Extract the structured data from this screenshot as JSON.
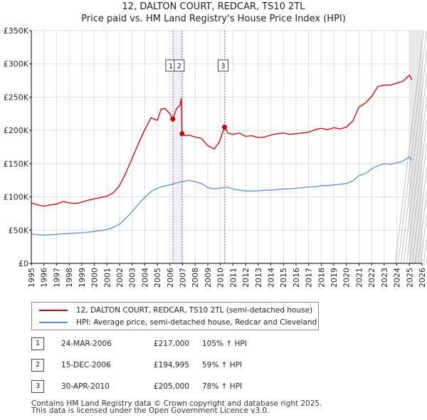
{
  "title_line1": "12, DALTON COURT, REDCAR, TS10 2TL",
  "title_line2": "Price paid vs. HM Land Registry's House Price Index (HPI)",
  "chart_data": {
    "type": "line",
    "title": "12, DALTON COURT, REDCAR, TS10 2TL — Price paid vs. HM Land Registry's House Price Index (HPI)",
    "xlabel": "",
    "ylabel": "",
    "xlim": [
      1995,
      2026
    ],
    "ylim": [
      0,
      350000
    ],
    "x_ticks": [
      1995,
      1996,
      1997,
      1998,
      1999,
      2000,
      2001,
      2002,
      2003,
      2004,
      2005,
      2006,
      2007,
      2008,
      2009,
      2010,
      2011,
      2012,
      2013,
      2014,
      2015,
      2016,
      2017,
      2018,
      2019,
      2020,
      2021,
      2022,
      2023,
      2024,
      2025,
      2026
    ],
    "y_ticks": [
      {
        "value": 0,
        "label": "£0"
      },
      {
        "value": 50000,
        "label": "£50K"
      },
      {
        "value": 100000,
        "label": "£100K"
      },
      {
        "value": 150000,
        "label": "£150K"
      },
      {
        "value": 200000,
        "label": "£200K"
      },
      {
        "value": 250000,
        "label": "£250K"
      },
      {
        "value": 300000,
        "label": "£300K"
      },
      {
        "value": 350000,
        "label": "£350K"
      }
    ],
    "grid": true,
    "forecast_start": 2025.0,
    "series": [
      {
        "name": "12, DALTON COURT, REDCAR, TS10 2TL (semi-detached house)",
        "color": "#cc0000",
        "x": [
          1995.0,
          1995.5,
          1996.0,
          1996.5,
          1997.0,
          1997.5,
          1998.0,
          1998.5,
          1999.0,
          1999.5,
          2000.0,
          2000.5,
          2001.0,
          2001.5,
          2002.0,
          2002.5,
          2003.0,
          2003.5,
          2004.0,
          2004.5,
          2005.0,
          2005.3,
          2005.6,
          2006.0,
          2006.23,
          2006.5,
          2006.8,
          2006.9,
          2006.96,
          2007.2,
          2007.5,
          2008.0,
          2008.5,
          2009.0,
          2009.5,
          2009.9,
          2010.33,
          2010.6,
          2011.0,
          2011.5,
          2012.0,
          2012.5,
          2013.0,
          2013.5,
          2014.0,
          2014.5,
          2015.0,
          2015.5,
          2016.0,
          2016.5,
          2017.0,
          2017.5,
          2018.0,
          2018.5,
          2019.0,
          2019.5,
          2020.0,
          2020.5,
          2021.0,
          2021.5,
          2022.0,
          2022.5,
          2023.0,
          2023.5,
          2024.0,
          2024.5,
          2025.0,
          2025.2
        ],
        "y": [
          91000,
          88000,
          86000,
          88000,
          89000,
          93000,
          91000,
          90000,
          92000,
          95000,
          97000,
          99000,
          101000,
          106000,
          117000,
          136000,
          158000,
          180000,
          201000,
          219000,
          215000,
          232000,
          233000,
          225000,
          217000,
          232000,
          238000,
          248000,
          194995,
          192000,
          193000,
          190000,
          188000,
          177000,
          172000,
          182000,
          205000,
          196000,
          194000,
          196000,
          191000,
          192000,
          189000,
          190000,
          193000,
          195000,
          196000,
          194000,
          195000,
          196000,
          197000,
          201000,
          203000,
          201000,
          204000,
          202000,
          205000,
          214000,
          235000,
          241000,
          251000,
          266000,
          268000,
          268000,
          271000,
          274000,
          283000,
          276000
        ]
      },
      {
        "name": "HPI: Average price, semi-detached house, Redcar and Cleveland",
        "color": "#5b8fd0",
        "x": [
          1995.0,
          1995.5,
          1996.0,
          1996.5,
          1997.0,
          1997.5,
          1998.0,
          1998.5,
          1999.0,
          1999.5,
          2000.0,
          2000.5,
          2001.0,
          2001.5,
          2002.0,
          2002.5,
          2003.0,
          2003.5,
          2004.0,
          2004.5,
          2005.0,
          2005.5,
          2006.0,
          2006.5,
          2007.0,
          2007.5,
          2008.0,
          2008.5,
          2009.0,
          2009.5,
          2010.0,
          2010.5,
          2011.0,
          2011.5,
          2012.0,
          2012.5,
          2013.0,
          2013.5,
          2014.0,
          2014.5,
          2015.0,
          2015.5,
          2016.0,
          2016.5,
          2017.0,
          2017.5,
          2018.0,
          2018.5,
          2019.0,
          2019.5,
          2020.0,
          2020.5,
          2021.0,
          2021.5,
          2022.0,
          2022.5,
          2023.0,
          2023.5,
          2024.0,
          2024.5,
          2025.0,
          2025.2
        ],
        "y": [
          44000,
          43000,
          42500,
          43000,
          43500,
          44500,
          45000,
          45500,
          46000,
          47000,
          48000,
          49500,
          51000,
          54000,
          59000,
          68000,
          78000,
          89000,
          99000,
          108000,
          113000,
          116000,
          118000,
          121000,
          123000,
          125000,
          123000,
          120000,
          114000,
          112000,
          113000,
          115000,
          112000,
          110000,
          109000,
          109000,
          109000,
          110000,
          110000,
          111000,
          112000,
          112000,
          113000,
          114000,
          115000,
          115000,
          117000,
          117000,
          118000,
          119000,
          120000,
          124000,
          132000,
          135000,
          142000,
          147000,
          150000,
          149000,
          151000,
          154000,
          160000,
          155000
        ]
      }
    ],
    "sales": [
      {
        "label": "1",
        "year": 2006.23,
        "price": 217000
      },
      {
        "label": "2",
        "year": 2006.96,
        "price": 194995
      },
      {
        "label": "3",
        "year": 2010.33,
        "price": 205000
      }
    ]
  },
  "legend": {
    "property": "12, DALTON COURT, REDCAR, TS10 2TL (semi-detached house)",
    "hpi": "HPI: Average price, semi-detached house, Redcar and Cleveland"
  },
  "sales_table": [
    {
      "num": "1",
      "date": "24-MAR-2006",
      "price": "£217,000",
      "hpi": "105% ↑ HPI"
    },
    {
      "num": "2",
      "date": "15-DEC-2006",
      "price": "£194,995",
      "hpi": "59% ↑ HPI"
    },
    {
      "num": "3",
      "date": "30-APR-2010",
      "price": "£205,000",
      "hpi": "78% ↑ HPI"
    }
  ],
  "footer_line1": "Contains HM Land Registry data © Crown copyright and database right 2025.",
  "footer_line2": "This data is licensed under the Open Government Licence v3.0."
}
